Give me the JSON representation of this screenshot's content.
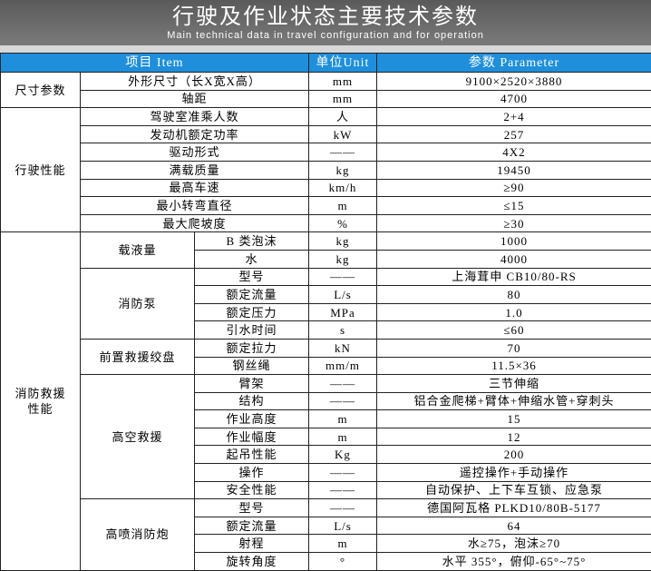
{
  "header": {
    "title": "行驶及作业状态主要技术参数",
    "subtitle": "Main technical data in travel configuration and for operation"
  },
  "table": {
    "columns": [
      "项目 Item",
      "单位Unit",
      "参数 Parameter"
    ],
    "sections": [
      {
        "label": "尺寸参数",
        "rows": [
          {
            "item": "外形尺寸（长X宽X高）",
            "unit": "mm",
            "value": "9100×2520×3880"
          },
          {
            "item": "轴距",
            "unit": "mm",
            "value": "4700"
          }
        ]
      },
      {
        "label": "行驶性能",
        "rows": [
          {
            "item": "驾驶室准乘人数",
            "unit": "人",
            "value": "2+4"
          },
          {
            "item": "发动机额定功率",
            "unit": "kW",
            "value": "257"
          },
          {
            "item": "驱动形式",
            "unit": "——",
            "value": "4X2"
          },
          {
            "item": "满载质量",
            "unit": "kg",
            "value": "19450"
          },
          {
            "item": "最高车速",
            "unit": "km/h",
            "value": "≥90"
          },
          {
            "item": "最小转弯直径",
            "unit": "m",
            "value": "≤15"
          },
          {
            "item": "最大爬坡度",
            "unit": "%",
            "value": "≥30"
          }
        ]
      },
      {
        "label": "消防救援性能",
        "groups": [
          {
            "label": "载液量",
            "rows": [
              {
                "item": "B 类泡沫",
                "unit": "kg",
                "value": "1000"
              },
              {
                "item": "水",
                "unit": "kg",
                "value": "4000"
              }
            ]
          },
          {
            "label": "消防泵",
            "rows": [
              {
                "item": "型号",
                "unit": "——",
                "value": "上海茸申 CB10/80-RS"
              },
              {
                "item": "额定流量",
                "unit": "L/s",
                "value": "80"
              },
              {
                "item": "额定压力",
                "unit": "MPa",
                "value": "1.0"
              },
              {
                "item": "引水时间",
                "unit": "s",
                "value": "≤60"
              }
            ]
          },
          {
            "label": "前置救援绞盘",
            "rows": [
              {
                "item": "额定拉力",
                "unit": "kN",
                "value": "70"
              },
              {
                "item": "钢丝绳",
                "unit": "mm/m",
                "value": "11.5×36"
              }
            ]
          },
          {
            "label": "高空救援",
            "rows": [
              {
                "item": "臂架",
                "unit": "——",
                "value": "三节伸缩"
              },
              {
                "item": "结构",
                "unit": "——",
                "value": "铝合金爬梯+臂体+伸缩水管+穿刺头"
              },
              {
                "item": "作业高度",
                "unit": "m",
                "value": "15"
              },
              {
                "item": "作业幅度",
                "unit": "m",
                "value": "12"
              },
              {
                "item": "起吊性能",
                "unit": "Kg",
                "value": "200"
              },
              {
                "item": "操作",
                "unit": "——",
                "value": "遥控操作+手动操作"
              },
              {
                "item": "安全性能",
                "unit": "——",
                "value": "自动保护、上下车互锁、应急泵"
              }
            ]
          },
          {
            "label": "高喷消防炮",
            "rows": [
              {
                "item": "型号",
                "unit": "——",
                "value": "德国阿瓦格 PLKD10/80B-5177"
              },
              {
                "item": "额定流量",
                "unit": "L/s",
                "value": "64"
              },
              {
                "item": "射程",
                "unit": "m",
                "value": "水≥75，泡沫≥70"
              },
              {
                "item": "旋转角度",
                "unit": "°",
                "value": "水平 355°，俯仰-65°~75°"
              }
            ]
          }
        ]
      }
    ]
  }
}
